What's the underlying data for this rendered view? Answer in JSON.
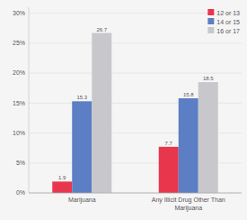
{
  "chart_data": {
    "type": "bar",
    "categories": [
      "Marijuana",
      "Any Illicit Drug Other Than\nMarijuana"
    ],
    "series": [
      {
        "name": "12 or 13",
        "color": "#e8364d",
        "values": [
          1.9,
          7.7
        ]
      },
      {
        "name": "14 or 15",
        "color": "#5b7ec4",
        "values": [
          15.3,
          15.8
        ]
      },
      {
        "name": "16 or 17",
        "color": "#c8c8cc",
        "values": [
          26.7,
          18.5
        ]
      }
    ],
    "ylim": [
      0,
      31
    ],
    "yticks": [
      {
        "value": 0,
        "label": "0%"
      },
      {
        "value": 5,
        "label": "5%"
      },
      {
        "value": 10,
        "label": "10%"
      },
      {
        "value": 15,
        "label": "15%"
      },
      {
        "value": 20,
        "label": "20%"
      },
      {
        "value": 25,
        "label": "25%"
      },
      {
        "value": 30,
        "label": "30%"
      }
    ],
    "grid": true,
    "legend": "upper right",
    "data_labels": true
  }
}
